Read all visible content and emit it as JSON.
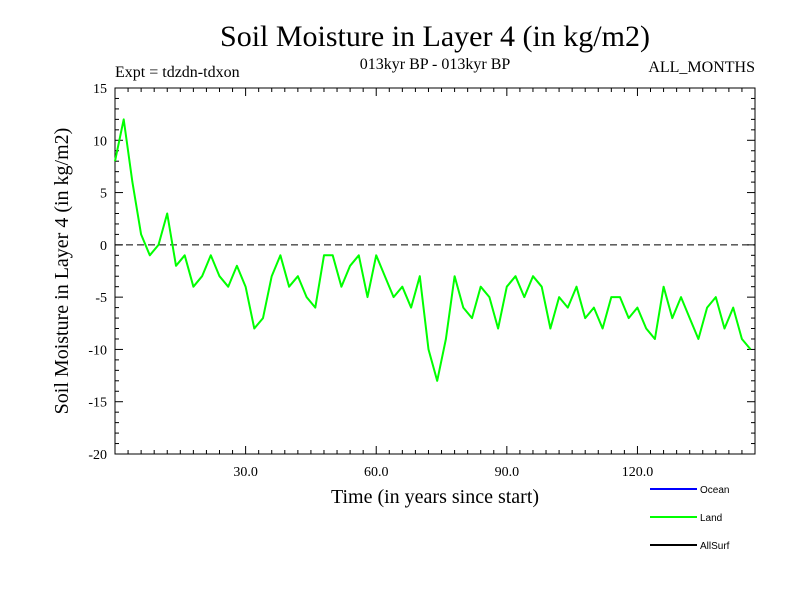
{
  "chart_data": {
    "type": "line",
    "title": "Soil Moisture in Layer 4 (in kg/m2)",
    "experiment_label": "Expt = tdzdn-tdxon",
    "period_label": "013kyr BP - 013kyr BP",
    "months_label": "ALL_MONTHS",
    "xlabel": "Time (in years since start)",
    "ylabel": "Soil Moisture in Layer 4 (in kg/m2)",
    "xlim": [
      0,
      147
    ],
    "ylim": [
      -20,
      15
    ],
    "xticks": [
      30,
      60,
      90,
      120
    ],
    "xtick_labels": [
      "30.0",
      "60.0",
      "90.0",
      "120.0"
    ],
    "yticks": [
      -20,
      -15,
      -10,
      -5,
      0,
      5,
      10,
      15
    ],
    "ytick_labels": [
      "-20",
      "-15",
      "-10",
      "-5",
      "0",
      "5",
      "10",
      "15"
    ],
    "reference_line": {
      "y": 0,
      "style": "dashed",
      "color": "#000000"
    },
    "legend": [
      {
        "name": "Ocean",
        "color": "#0000ff"
      },
      {
        "name": "Land",
        "color": "#00ff00"
      },
      {
        "name": "AllSurf",
        "color": "#000000"
      }
    ],
    "series": [
      {
        "name": "Land",
        "color": "#00ff00",
        "x": [
          0,
          2,
          4,
          6,
          8,
          10,
          12,
          14,
          16,
          18,
          20,
          22,
          24,
          26,
          28,
          30,
          32,
          34,
          36,
          38,
          40,
          42,
          44,
          46,
          48,
          50,
          52,
          54,
          56,
          58,
          60,
          62,
          64,
          66,
          68,
          70,
          72,
          74,
          76,
          78,
          80,
          82,
          84,
          86,
          88,
          90,
          92,
          94,
          96,
          98,
          100,
          102,
          104,
          106,
          108,
          110,
          112,
          114,
          116,
          118,
          120,
          122,
          124,
          126,
          128,
          130,
          132,
          134,
          136,
          138,
          140,
          142,
          144,
          146
        ],
        "values": [
          8,
          12,
          6,
          1,
          -1,
          0,
          3,
          -2,
          -1,
          -4,
          -3,
          -1,
          -3,
          -4,
          -2,
          -4,
          -8,
          -7,
          -3,
          -1,
          -4,
          -3,
          -5,
          -6,
          -1,
          -1,
          -4,
          -2,
          -1,
          -5,
          -1,
          -3,
          -5,
          -4,
          -6,
          -3,
          -10,
          -13,
          -9,
          -3,
          -6,
          -7,
          -4,
          -5,
          -8,
          -4,
          -3,
          -5,
          -3,
          -4,
          -8,
          -5,
          -6,
          -4,
          -7,
          -6,
          -8,
          -5,
          -5,
          -7,
          -6,
          -8,
          -9,
          -4,
          -7,
          -5,
          -7,
          -9,
          -6,
          -5,
          -8,
          -6,
          -9,
          -10
        ]
      }
    ]
  }
}
